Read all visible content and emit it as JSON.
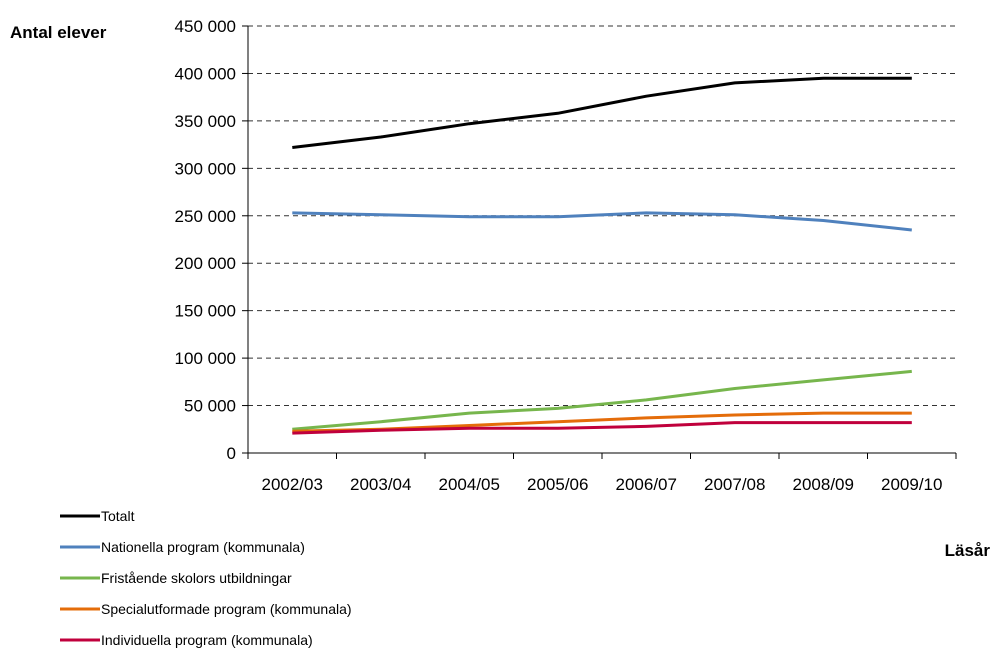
{
  "chart_data": {
    "type": "line",
    "title": "",
    "ylabel": "Antal elever",
    "xlabel": "Läsår",
    "categories": [
      "2002/03",
      "2003/04",
      "2004/05",
      "2005/06",
      "2006/07",
      "2007/08",
      "2008/09",
      "2009/10"
    ],
    "ylim": [
      0,
      450000
    ],
    "yticks": [
      0,
      50000,
      100000,
      150000,
      200000,
      250000,
      300000,
      350000,
      400000,
      450000
    ],
    "ytick_labels": [
      "0",
      "50 000",
      "100 000",
      "150 000",
      "200 000",
      "250 000",
      "300 000",
      "350 000",
      "400 000",
      "450 000"
    ],
    "grid": "horizontal-dashed",
    "legend_position": "bottom-left",
    "series": [
      {
        "name": "Totalt",
        "color": "#000000",
        "values": [
          322000,
          333000,
          347000,
          358000,
          376000,
          390000,
          395000,
          395000
        ]
      },
      {
        "name": "Nationella program (kommunala)",
        "color": "#4f81bd",
        "values": [
          253000,
          251000,
          249000,
          249000,
          253000,
          251000,
          245000,
          235000
        ]
      },
      {
        "name": "Fristående skolors utbildningar",
        "color": "#77b64d",
        "values": [
          25000,
          33000,
          42000,
          47000,
          56000,
          68000,
          77000,
          86000
        ]
      },
      {
        "name": "Specialutformade program (kommunala)",
        "color": "#e46c0a",
        "values": [
          23000,
          25000,
          29000,
          33000,
          37000,
          40000,
          42000,
          42000
        ]
      },
      {
        "name": "Individuella program (kommunala)",
        "color": "#c0003c",
        "values": [
          21000,
          24000,
          26000,
          26000,
          28000,
          32000,
          32000,
          32000
        ]
      }
    ]
  }
}
